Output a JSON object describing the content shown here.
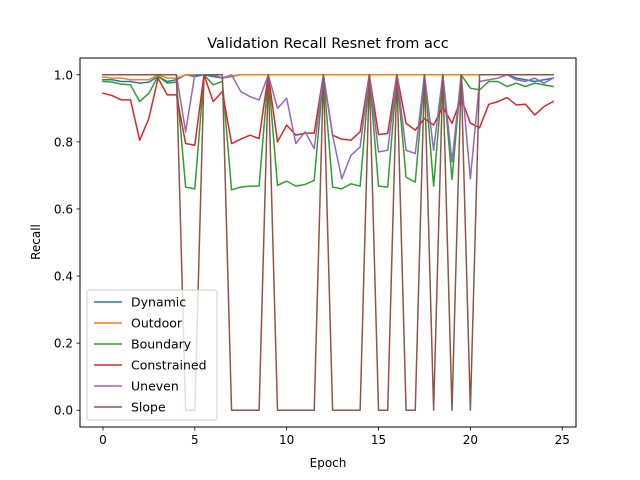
{
  "chart_data": {
    "type": "line",
    "title": "Validation Recall Resnet from acc",
    "xlabel": "Epoch",
    "ylabel": "Recall",
    "xlim": [
      -1.25,
      25.75
    ],
    "ylim": [
      -0.05,
      1.05
    ],
    "xticks": [
      0,
      5,
      10,
      15,
      20,
      25
    ],
    "yticks": [
      0.0,
      0.2,
      0.4,
      0.6,
      0.8,
      1.0
    ],
    "xtick_labels": [
      "0",
      "5",
      "10",
      "15",
      "20",
      "25"
    ],
    "ytick_labels": [
      "0.0",
      "0.2",
      "0.4",
      "0.6",
      "0.8",
      "1.0"
    ],
    "grid": false,
    "legend_position": "lower-left",
    "x": [
      0,
      0.5,
      1,
      1.5,
      2,
      2.5,
      3,
      3.5,
      4,
      4.5,
      5,
      5.5,
      6,
      6.5,
      7,
      7.5,
      8,
      8.5,
      9,
      9.5,
      10,
      10.5,
      11,
      11.5,
      12,
      12.5,
      13,
      13.5,
      14,
      14.5,
      15,
      15.5,
      16,
      16.5,
      17,
      17.5,
      18,
      18.5,
      19,
      19.5,
      20,
      20.5,
      21,
      21.5,
      22,
      22.5,
      23,
      23.5,
      24,
      24.5
    ],
    "series": [
      {
        "name": "Dynamic",
        "color": "#1f77b4",
        "values": [
          0.985,
          0.985,
          0.98,
          0.98,
          0.975,
          0.978,
          0.995,
          0.98,
          0.985,
          1.0,
          0.995,
          1.0,
          0.995,
          0.99,
          0.995,
          1.0,
          1.0,
          1.0,
          1.0,
          1.0,
          1.0,
          1.0,
          1.0,
          1.0,
          1.0,
          1.0,
          1.0,
          1.0,
          1.0,
          1.0,
          1.0,
          1.0,
          1.0,
          1.0,
          1.0,
          1.0,
          1.0,
          1.0,
          1.0,
          1.0,
          1.0,
          1.0,
          1.0,
          1.0,
          1.0,
          0.99,
          0.985,
          0.98,
          0.985,
          0.99
        ]
      },
      {
        "name": "Outdoor",
        "color": "#ff7f0e",
        "values": [
          0.993,
          0.99,
          0.99,
          0.985,
          0.985,
          0.985,
          1.0,
          0.99,
          0.99,
          1.0,
          1.0,
          1.0,
          1.0,
          0.99,
          0.997,
          1.0,
          1.0,
          1.0,
          1.0,
          1.0,
          1.0,
          1.0,
          1.0,
          1.0,
          1.0,
          1.0,
          1.0,
          1.0,
          1.0,
          1.0,
          1.0,
          1.0,
          1.0,
          1.0,
          1.0,
          1.0,
          1.0,
          1.0,
          1.0,
          1.0,
          1.0,
          1.0,
          1.0,
          1.0,
          1.0,
          1.0,
          1.0,
          1.0,
          1.0,
          1.0
        ]
      },
      {
        "name": "Boundary",
        "color": "#2ca02c",
        "values": [
          0.98,
          0.978,
          0.972,
          0.97,
          0.92,
          0.945,
          0.995,
          0.975,
          0.978,
          0.665,
          0.66,
          1.0,
          0.97,
          0.98,
          0.657,
          0.665,
          0.668,
          0.668,
          1.0,
          0.67,
          0.683,
          0.668,
          0.673,
          0.685,
          1.0,
          0.665,
          0.66,
          0.675,
          0.668,
          1.0,
          0.668,
          0.665,
          1.0,
          0.695,
          0.68,
          1.0,
          0.668,
          1.0,
          0.688,
          1.0,
          0.96,
          0.955,
          0.98,
          0.98,
          0.965,
          0.975,
          0.965,
          0.975,
          0.97,
          0.965
        ]
      },
      {
        "name": "Constrained",
        "color": "#d62728",
        "values": [
          0.945,
          0.938,
          0.925,
          0.925,
          0.805,
          0.87,
          0.99,
          0.94,
          0.94,
          0.795,
          0.79,
          1.0,
          0.92,
          0.95,
          0.795,
          0.808,
          0.82,
          0.81,
          1.0,
          0.8,
          0.85,
          0.82,
          0.826,
          0.826,
          1.0,
          0.82,
          0.808,
          0.805,
          0.83,
          1.0,
          0.822,
          0.825,
          1.0,
          0.855,
          0.835,
          0.87,
          0.85,
          0.905,
          0.855,
          0.93,
          0.856,
          0.842,
          0.912,
          0.92,
          0.932,
          0.91,
          0.912,
          0.88,
          0.905,
          0.92
        ]
      },
      {
        "name": "Uneven",
        "color": "#9467bd",
        "values": [
          1.0,
          1.0,
          1.0,
          1.0,
          1.0,
          1.0,
          1.0,
          1.0,
          1.0,
          0.83,
          1.0,
          1.0,
          1.0,
          0.99,
          1.0,
          0.95,
          0.935,
          0.925,
          1.0,
          0.9,
          0.93,
          0.795,
          0.83,
          0.78,
          1.0,
          0.82,
          0.69,
          0.76,
          0.785,
          1.0,
          0.77,
          0.775,
          1.0,
          0.775,
          0.765,
          1.0,
          0.775,
          1.0,
          0.74,
          1.0,
          0.69,
          0.98,
          0.985,
          0.99,
          1.0,
          0.985,
          0.98,
          0.99,
          0.975,
          0.99
        ]
      },
      {
        "name": "Slope",
        "color": "#8c564b",
        "values": [
          1.0,
          1.0,
          1.0,
          1.0,
          1.0,
          1.0,
          1.0,
          1.0,
          1.0,
          0.0,
          0.0,
          1.0,
          1.0,
          1.0,
          0.0,
          0.0,
          0.0,
          0.0,
          1.0,
          0.0,
          0.0,
          0.0,
          0.0,
          0.0,
          1.0,
          0.0,
          0.0,
          0.0,
          0.0,
          1.0,
          0.0,
          0.0,
          1.0,
          0.0,
          0.0,
          1.0,
          0.0,
          1.0,
          0.0,
          1.0,
          0.0,
          1.0,
          1.0,
          1.0,
          1.0,
          1.0,
          1.0,
          1.0,
          1.0,
          1.0
        ]
      }
    ]
  }
}
